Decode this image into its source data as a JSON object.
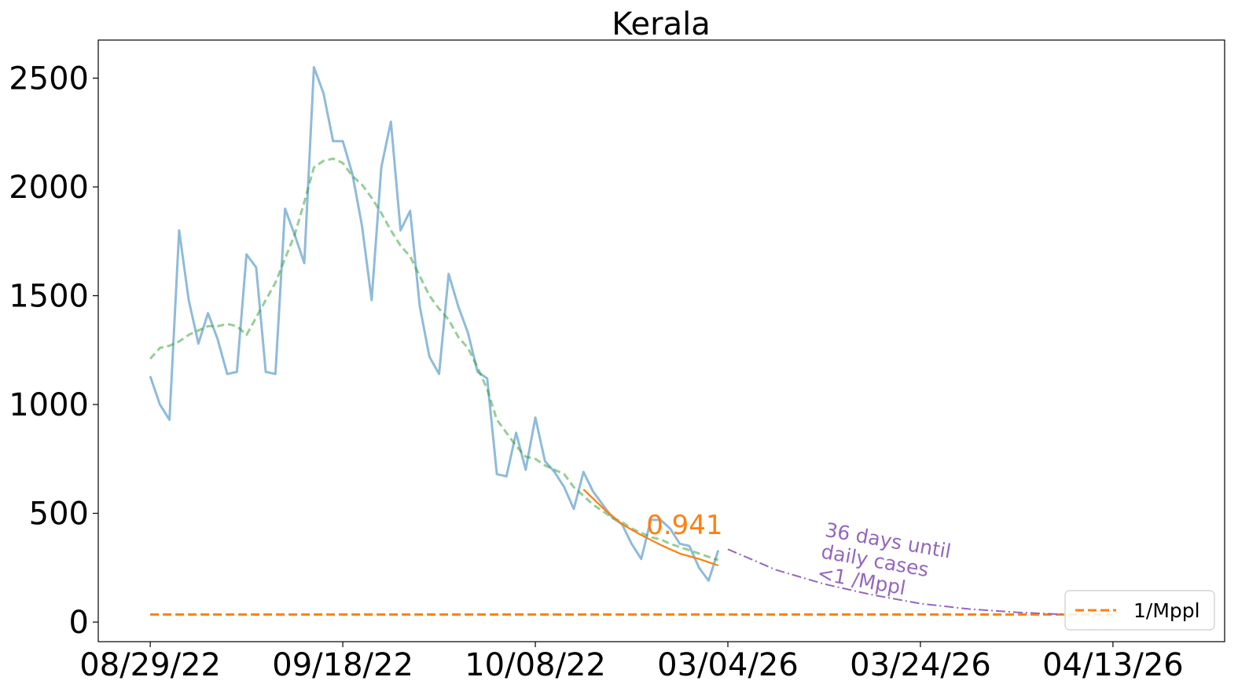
{
  "chart_data": {
    "type": "line",
    "title": "Kerala",
    "xlabel": "",
    "ylabel": "",
    "ylim": [
      -90,
      2675
    ],
    "yticks": [
      0,
      500,
      1000,
      1500,
      2000,
      2500
    ],
    "xlim": [
      -5.4,
      111.6
    ],
    "xticks": [
      {
        "x": 0,
        "label": "08/29/22"
      },
      {
        "x": 20,
        "label": "09/18/22"
      },
      {
        "x": 40,
        "label": "10/08/22"
      },
      {
        "x": 60,
        "label": "03/04/26"
      },
      {
        "x": 80,
        "label": "03/24/26"
      },
      {
        "x": 100,
        "label": "04/13/26"
      }
    ],
    "grid": false,
    "legend_position": "bottom-right",
    "colors": {
      "daily": "#1f77b4",
      "smoothed": "#2ca02c",
      "fit": "#ff7f0e",
      "projection": "#9467bd",
      "threshold": "#ff7f0e"
    },
    "series": [
      {
        "role": "daily",
        "x": [
          0,
          1,
          2,
          3,
          4,
          5,
          6,
          7,
          8,
          9,
          10,
          11,
          12,
          13,
          14,
          15,
          16,
          17,
          18,
          19,
          20,
          21,
          22,
          23,
          24,
          25,
          26,
          27,
          28,
          29,
          30,
          31,
          32,
          33,
          34,
          35,
          36,
          37,
          38,
          39,
          40,
          41,
          42,
          43,
          44,
          45,
          46,
          47,
          48,
          49,
          50,
          51,
          52,
          53,
          54,
          55,
          56,
          57,
          58,
          59
        ],
        "values": [
          1130,
          1000,
          930,
          1800,
          1480,
          1280,
          1420,
          1300,
          1140,
          1150,
          1690,
          1630,
          1150,
          1140,
          1900,
          1780,
          1650,
          2550,
          2430,
          2210,
          2210,
          2060,
          1820,
          1480,
          2090,
          2300,
          1800,
          1890,
          1450,
          1220,
          1140,
          1600,
          1450,
          1330,
          1150,
          1120,
          680,
          670,
          870,
          700,
          940,
          740,
          690,
          620,
          520,
          690,
          600,
          540,
          480,
          450,
          360,
          290,
          470,
          470,
          430,
          360,
          350,
          250,
          190,
          330
        ]
      },
      {
        "role": "smoothed",
        "x": [
          0,
          1,
          2,
          3,
          4,
          5,
          6,
          7,
          8,
          9,
          10,
          11,
          12,
          13,
          14,
          15,
          16,
          17,
          18,
          19,
          20,
          21,
          22,
          23,
          24,
          25,
          26,
          27,
          28,
          29,
          30,
          31,
          32,
          33,
          34,
          35,
          36,
          37,
          38,
          39,
          40,
          41,
          42,
          43,
          44,
          45,
          46,
          47,
          48,
          49,
          50,
          51,
          52,
          53,
          54,
          55,
          56,
          57,
          58,
          59
        ],
        "values": [
          1210,
          1260,
          1270,
          1290,
          1320,
          1340,
          1360,
          1360,
          1370,
          1360,
          1320,
          1400,
          1480,
          1560,
          1670,
          1780,
          1930,
          2090,
          2120,
          2130,
          2110,
          2050,
          2010,
          1950,
          1880,
          1800,
          1730,
          1680,
          1590,
          1500,
          1440,
          1390,
          1310,
          1260,
          1170,
          1070,
          930,
          870,
          810,
          760,
          750,
          720,
          700,
          680,
          620,
          580,
          540,
          510,
          480,
          460,
          430,
          410,
          390,
          380,
          360,
          345,
          330,
          315,
          300,
          285
        ]
      },
      {
        "role": "fit",
        "x": [
          45,
          47,
          49,
          51,
          53,
          55,
          57,
          59
        ],
        "values": [
          610,
          525,
          450,
          400,
          355,
          315,
          290,
          260
        ]
      },
      {
        "role": "projection",
        "x": [
          60,
          65,
          70,
          75,
          80,
          85,
          90,
          95
        ],
        "values": [
          335,
          240,
          175,
          125,
          85,
          60,
          45,
          35
        ]
      },
      {
        "role": "threshold",
        "name": "1/Mppl",
        "x": [
          0,
          100
        ],
        "values": [
          35,
          35
        ]
      }
    ],
    "annotations": [
      {
        "text": "0.941",
        "x": 55.5,
        "y": 405
      },
      {
        "lines": [
          "36 days until",
          "daily cases",
          "<1 /Mppl"
        ],
        "x": 70,
        "y": 395
      }
    ],
    "legend": [
      "1/Mppl"
    ]
  }
}
